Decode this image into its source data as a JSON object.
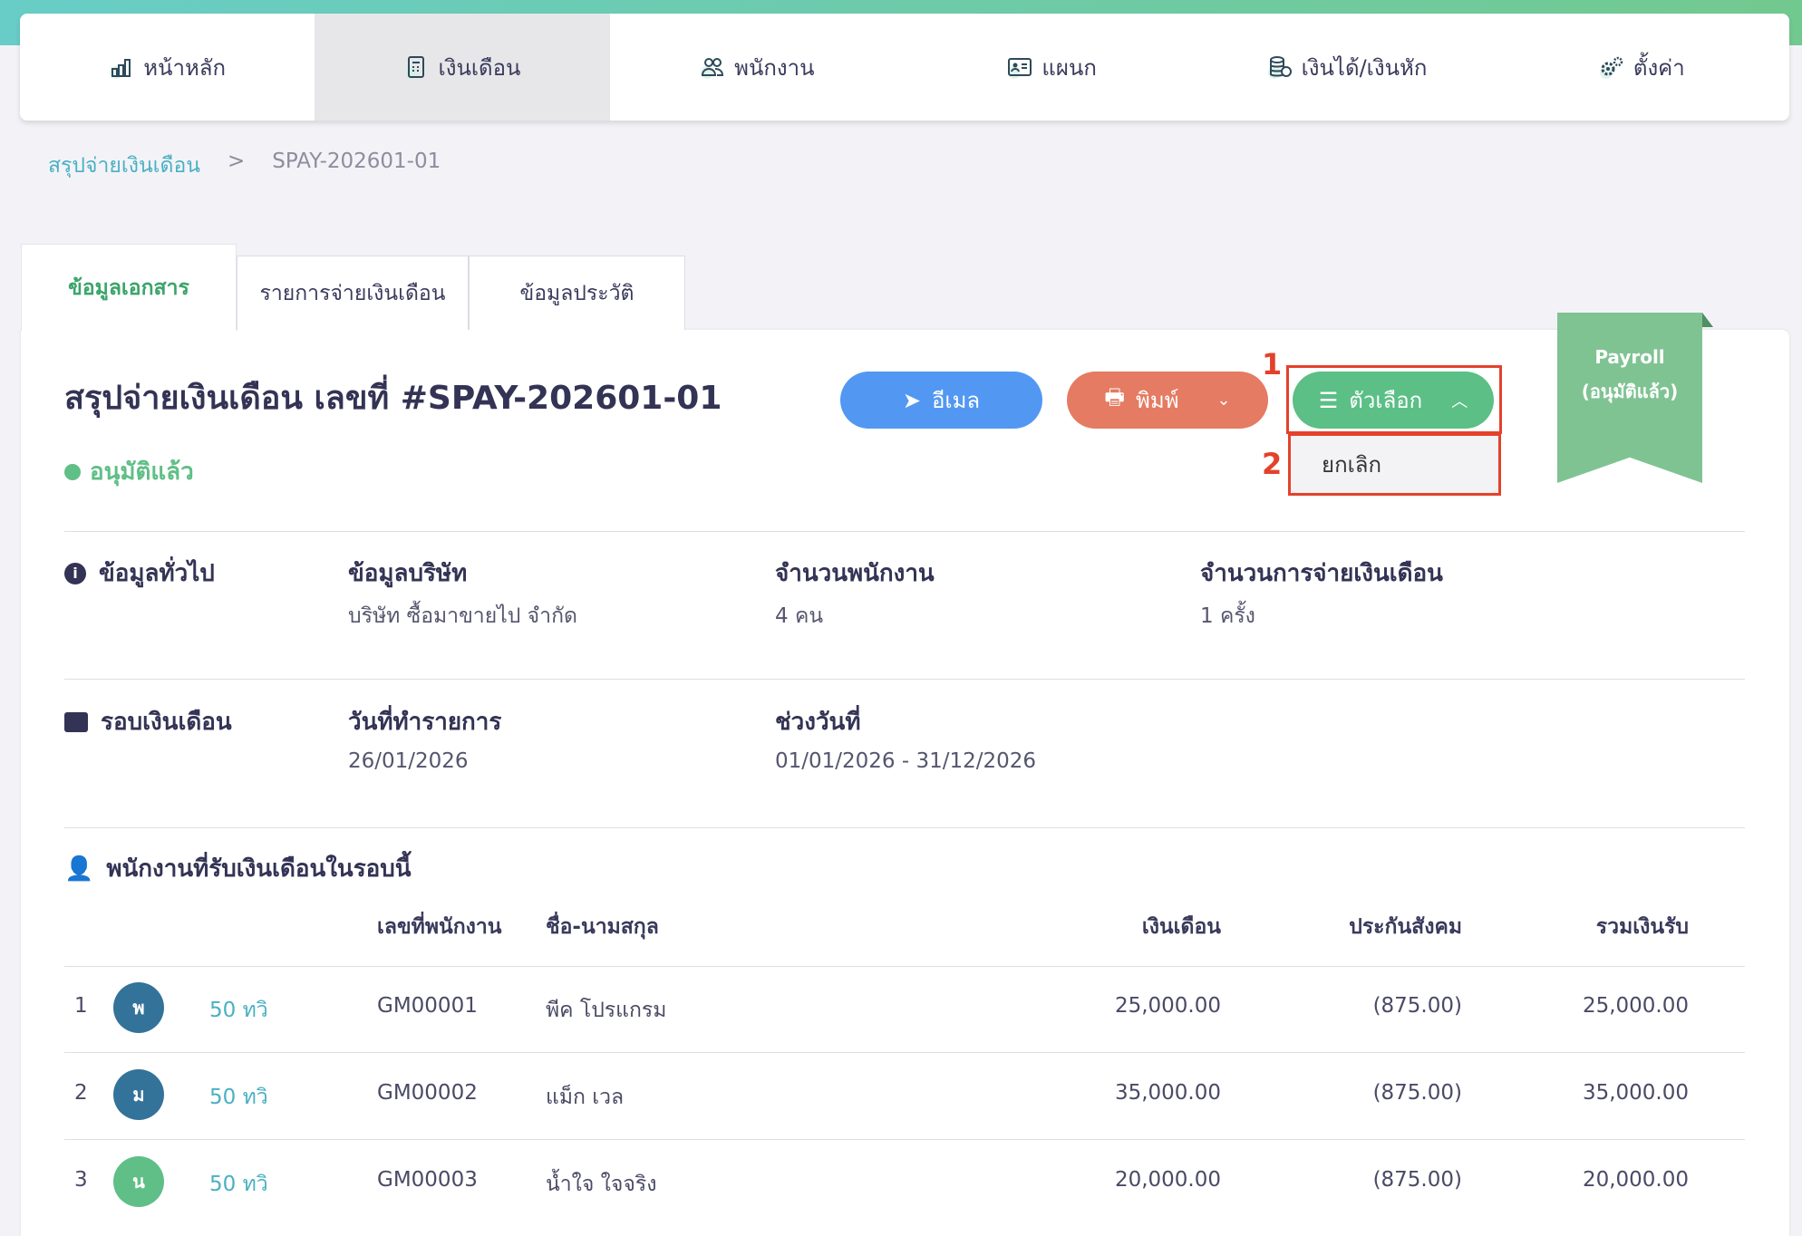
{
  "nav": {
    "items": [
      {
        "label": "หน้าหลัก",
        "icon": "bar-chart-icon"
      },
      {
        "label": "เงินเดือน",
        "icon": "calculator-icon",
        "active": true
      },
      {
        "label": "พนักงาน",
        "icon": "users-icon"
      },
      {
        "label": "แผนก",
        "icon": "id-card-icon"
      },
      {
        "label": "เงินได้/เงินหัก",
        "icon": "coins-icon"
      },
      {
        "label": "ตั้งค่า",
        "icon": "gears-icon"
      }
    ]
  },
  "breadcrumb": {
    "parent": "สรุปจ่ายเงินเดือน",
    "sep": ">",
    "current": "SPAY-202601-01"
  },
  "tabs": [
    "ข้อมูลเอกสาร",
    "รายการจ่ายเงินเดือน",
    "ข้อมูลประวัติ"
  ],
  "header": {
    "title": "สรุปจ่ายเงินเดือน เลขที่ #SPAY-202601-01",
    "status": "อนุมัติแล้ว",
    "status_color": "#5fbf86"
  },
  "buttons": {
    "email": "อีเมล",
    "print": "พิมพ์",
    "options": "ตัวเลือก"
  },
  "dropdown": {
    "items": [
      "ยกเลิก"
    ]
  },
  "annotations": [
    "1",
    "2"
  ],
  "ribbon": {
    "line1": "Payroll",
    "line2": "(อนุมัติแล้ว)"
  },
  "general": {
    "label": "ข้อมูลทั่วไป",
    "company_label": "ข้อมูลบริษัท",
    "company": "บริษัท ซื้อมาขายไป จำกัด",
    "emp_count_label": "จำนวนพนักงาน",
    "emp_count": "4 คน",
    "pay_count_label": "จำนวนการจ่ายเงินเดือน",
    "pay_count": "1 ครั้ง"
  },
  "cycle": {
    "label": "รอบเงินเดือน",
    "date_label": "วันที่ทำรายการ",
    "date": "26/01/2026",
    "range_label": "ช่วงวันที่",
    "range": "01/01/2026 - 31/12/2026"
  },
  "employees": {
    "label": "พนักงานที่รับเงินเดือนในรอบนี้",
    "columns": [
      "เลขที่พนักงาน",
      "ชื่อ-นามสกุล",
      "เงินเดือน",
      "ประกันสังคม",
      "รวมเงินรับ"
    ],
    "rows": [
      {
        "no": "1",
        "initial": "พ",
        "color": "#347399",
        "tax": "50 ทวิ",
        "id": "GM00001",
        "name": "พีค โปรแกรม",
        "salary": "25,000.00",
        "sso": "(875.00)",
        "total": "25,000.00"
      },
      {
        "no": "2",
        "initial": "ม",
        "color": "#347399",
        "tax": "50 ทวิ",
        "id": "GM00002",
        "name": "แม็ก เวล",
        "salary": "35,000.00",
        "sso": "(875.00)",
        "total": "35,000.00"
      },
      {
        "no": "3",
        "initial": "น",
        "color": "#5fbf86",
        "tax": "50 ทวิ",
        "id": "GM00003",
        "name": "น้ำใจ ใจจริง",
        "salary": "20,000.00",
        "sso": "(875.00)",
        "total": "20,000.00"
      }
    ]
  }
}
